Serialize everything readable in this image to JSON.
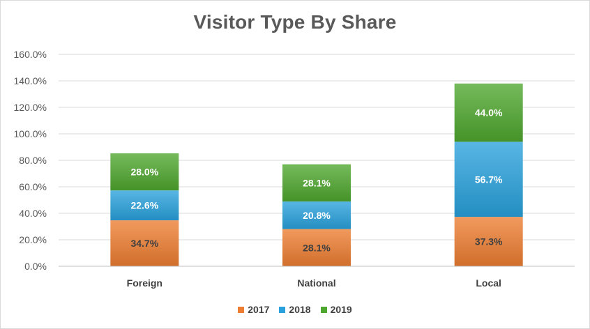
{
  "chart_data": {
    "type": "bar",
    "stacked": true,
    "title": "Visitor Type By Share",
    "categories": [
      "Foreign",
      "National",
      "Local"
    ],
    "series": [
      {
        "name": "2017",
        "values": [
          34.7,
          28.1,
          37.3
        ],
        "labels": [
          "34.7%",
          "28.1%",
          "37.3%"
        ],
        "color": "#ed7d31"
      },
      {
        "name": "2018",
        "values": [
          22.6,
          20.8,
          56.7
        ],
        "labels": [
          "22.6%",
          "20.8%",
          "56.7%"
        ],
        "color": "#29a1dc"
      },
      {
        "name": "2019",
        "values": [
          28.0,
          28.1,
          44.0
        ],
        "labels": [
          "28.0%",
          "28.1%",
          "44.0%"
        ],
        "color": "#4ea72e"
      }
    ],
    "ylim": [
      0,
      160
    ],
    "yticks": [
      "0.0%",
      "20.0%",
      "40.0%",
      "60.0%",
      "80.0%",
      "100.0%",
      "120.0%",
      "140.0%",
      "160.0%"
    ],
    "grid": true,
    "legend_position": "bottom",
    "xlabel": "",
    "ylabel": ""
  }
}
